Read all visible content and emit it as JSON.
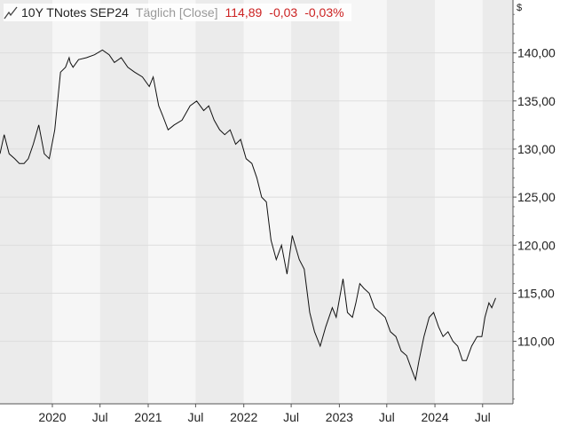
{
  "header": {
    "instrument": "10Y TNotes SEP24",
    "period": "Täglich [Close]",
    "price": "114,89",
    "change": "-0,03",
    "change_pct": "-0,03%",
    "icon": "line-chart-icon",
    "colors": {
      "name": "#222222",
      "period": "#999999",
      "negative": "#cc2222"
    }
  },
  "currency_label": "$",
  "colors": {
    "band_dark": "#ebebeb",
    "band_light": "#f6f6f6",
    "grid": "#dddddd",
    "line": "#111111",
    "axis_bg": "#ffffff"
  },
  "chart_data": {
    "type": "line",
    "title": "",
    "xlabel": "",
    "ylabel": "",
    "ylim": [
      103.5,
      145.5
    ],
    "y_ticks": [
      {
        "value": 110,
        "label": "110,00"
      },
      {
        "value": 115,
        "label": "115,00"
      },
      {
        "value": 120,
        "label": "120,00"
      },
      {
        "value": 125,
        "label": "125,00"
      },
      {
        "value": 130,
        "label": "130,00"
      },
      {
        "value": 135,
        "label": "135,00"
      },
      {
        "value": 140,
        "label": "140,00"
      }
    ],
    "x_range": [
      "2019-06-15",
      "2024-10-25"
    ],
    "x_ticks": [
      {
        "date": "2020-01-01",
        "label": "2020"
      },
      {
        "date": "2020-07-01",
        "label": "Jul"
      },
      {
        "date": "2021-01-01",
        "label": "2021"
      },
      {
        "date": "2021-07-01",
        "label": "Jul"
      },
      {
        "date": "2022-01-01",
        "label": "2022"
      },
      {
        "date": "2022-07-01",
        "label": "Jul"
      },
      {
        "date": "2023-01-01",
        "label": "2023"
      },
      {
        "date": "2023-07-01",
        "label": "Jul"
      },
      {
        "date": "2024-01-01",
        "label": "2024"
      },
      {
        "date": "2024-07-01",
        "label": "Jul"
      }
    ],
    "grid": true,
    "series": [
      {
        "x": [
          "2019-06-15",
          "2019-07-01",
          "2019-07-20",
          "2019-08-10",
          "2019-08-28",
          "2019-09-15",
          "2019-10-01",
          "2019-10-20",
          "2019-11-10",
          "2019-12-01",
          "2019-12-20",
          "2020-01-10",
          "2020-02-01",
          "2020-02-20",
          "2020-03-05",
          "2020-03-09",
          "2020-03-20",
          "2020-04-10",
          "2020-05-10",
          "2020-06-10",
          "2020-07-10",
          "2020-08-05",
          "2020-08-25",
          "2020-09-20",
          "2020-10-15",
          "2020-11-10",
          "2020-12-10",
          "2021-01-05",
          "2021-01-20",
          "2021-02-10",
          "2021-02-25",
          "2021-03-18",
          "2021-04-10",
          "2021-05-10",
          "2021-06-10",
          "2021-07-05",
          "2021-08-01",
          "2021-08-20",
          "2021-09-10",
          "2021-10-01",
          "2021-10-20",
          "2021-11-10",
          "2021-12-01",
          "2021-12-20",
          "2022-01-10",
          "2022-02-01",
          "2022-02-20",
          "2022-03-10",
          "2022-03-28",
          "2022-04-15",
          "2022-05-05",
          "2022-05-25",
          "2022-06-15",
          "2022-07-05",
          "2022-08-01",
          "2022-08-20",
          "2022-09-10",
          "2022-09-28",
          "2022-10-20",
          "2022-11-10",
          "2022-12-05",
          "2022-12-20",
          "2023-01-15",
          "2023-02-01",
          "2023-02-20",
          "2023-03-05",
          "2023-03-20",
          "2023-04-05",
          "2023-04-25",
          "2023-05-15",
          "2023-06-05",
          "2023-06-25",
          "2023-07-15",
          "2023-08-05",
          "2023-08-25",
          "2023-09-15",
          "2023-10-05",
          "2023-10-19",
          "2023-11-01",
          "2023-11-20",
          "2023-12-10",
          "2023-12-27",
          "2024-01-15",
          "2024-02-01",
          "2024-02-20",
          "2024-03-10",
          "2024-03-28",
          "2024-04-15",
          "2024-04-30",
          "2024-05-20",
          "2024-06-10",
          "2024-06-28",
          "2024-07-10",
          "2024-07-25",
          "2024-08-05",
          "2024-08-20"
        ],
        "values": [
          129.5,
          131.5,
          129.5,
          129.0,
          128.5,
          128.5,
          129.0,
          130.5,
          132.5,
          129.5,
          129.0,
          132.0,
          138.0,
          138.5,
          139.5,
          139.0,
          138.5,
          139.3,
          139.5,
          139.8,
          140.3,
          139.8,
          139.0,
          139.5,
          138.5,
          138.0,
          137.5,
          136.5,
          137.5,
          134.5,
          133.5,
          132.0,
          132.5,
          133.0,
          134.5,
          135.0,
          134.0,
          134.5,
          133.0,
          132.0,
          131.5,
          132.0,
          130.5,
          131.0,
          129.0,
          128.5,
          127.0,
          125.0,
          124.5,
          120.5,
          118.5,
          120.0,
          117.0,
          121.0,
          118.5,
          117.5,
          113.0,
          111.0,
          109.5,
          111.5,
          113.5,
          112.5,
          116.5,
          113.0,
          112.5,
          114.0,
          116.0,
          115.5,
          115.0,
          113.5,
          113.0,
          112.5,
          111.0,
          110.5,
          109.0,
          108.5,
          107.0,
          106.0,
          108.0,
          110.5,
          112.5,
          113.0,
          111.5,
          110.5,
          111.0,
          110.0,
          109.5,
          108.0,
          108.0,
          109.5,
          110.5,
          110.5,
          112.5,
          114.0,
          113.5,
          114.5
        ]
      }
    ]
  }
}
